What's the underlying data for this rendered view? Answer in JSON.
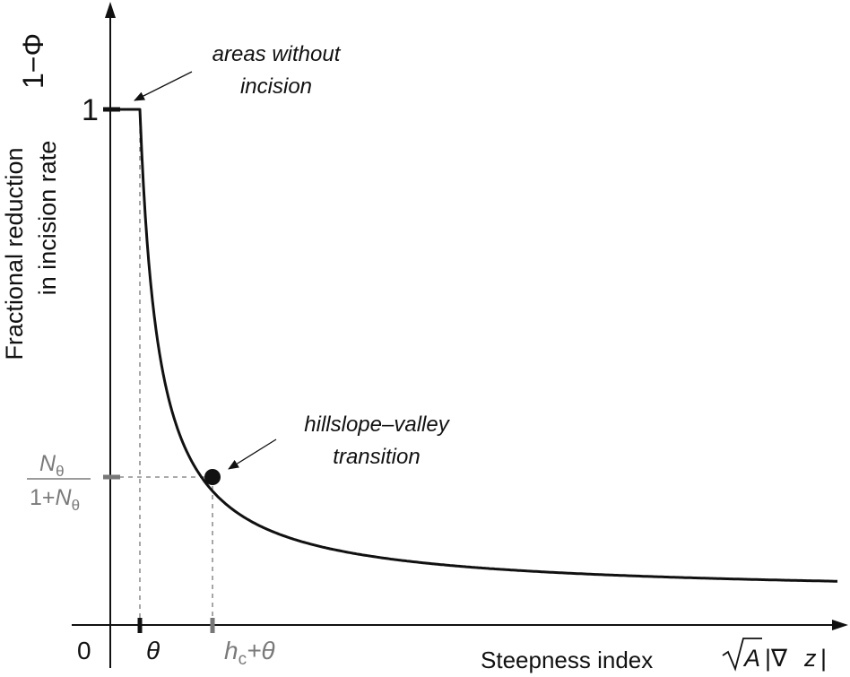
{
  "figure": {
    "y_symbol": "1−Φ",
    "y_label_line1": "Fractional reduction",
    "y_label_line2": "in incision rate",
    "y_tick_one": "1",
    "y_tick_num": "N",
    "y_tick_num_sub": "θ",
    "y_tick_den_pre": "1+",
    "y_tick_den_N": "N",
    "y_tick_den_sub": "θ",
    "x_origin": "0",
    "x_tick_theta": "θ",
    "x_tick_h": "h",
    "x_tick_h_sub": "c",
    "x_tick_h_post": "+θ",
    "x_label": "Steepness index",
    "x_symbol_A": "A",
    "x_symbol_grad": "|∇",
    "x_symbol_z": "z",
    "x_symbol_close": "|",
    "annotation_top_line1": "areas without",
    "annotation_top_line2": "incision",
    "annotation_mid_line1": "hillslope–valley",
    "annotation_mid_line2": "transition"
  },
  "colors": {
    "curve": "#111111",
    "axis": "#111111",
    "guide": "#7a7a7a"
  }
}
